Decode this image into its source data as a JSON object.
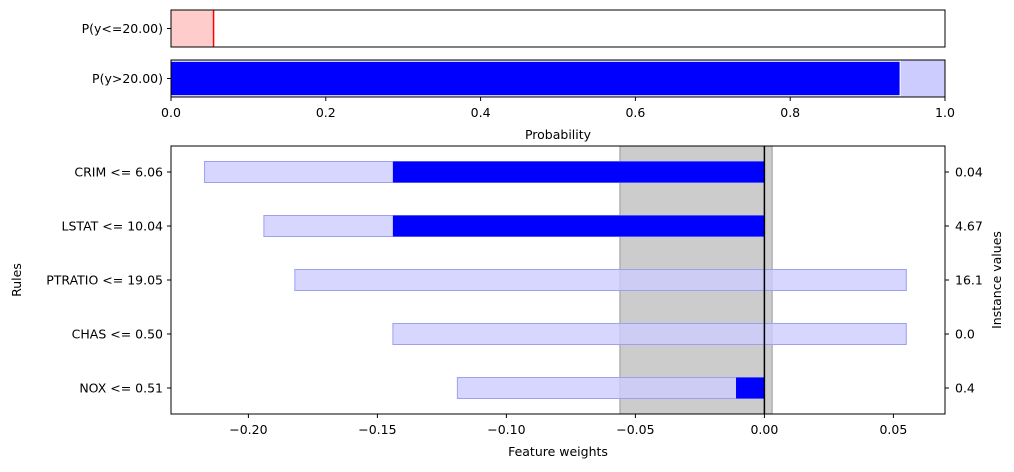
{
  "chart_data": [
    {
      "type": "bar",
      "orientation": "horizontal",
      "categories": [
        "P(y<=20.00)",
        "P(y>20.00)"
      ],
      "series": [
        {
          "values": [
            0.055,
            0.942
          ],
          "colors": [
            "#ff0000",
            "#0000ff"
          ]
        },
        {
          "values": [
            0.055,
            1.0
          ],
          "colors": [
            "#ffcccc",
            "#ccccff"
          ]
        }
      ],
      "xlabel": "Probability",
      "xlim": [
        0,
        1
      ],
      "xticks": [
        "0.0",
        "0.2",
        "0.4",
        "0.6",
        "0.8",
        "1.0"
      ],
      "grid": false
    },
    {
      "type": "bar",
      "orientation": "horizontal",
      "categories": [
        "CRIM <= 6.06",
        "LSTAT <= 10.04",
        "PTRATIO <= 19.05",
        "CHAS <= 0.50",
        "NOX <= 0.51"
      ],
      "instance_values": [
        "0.04",
        "4.67",
        "16.1",
        "0.0",
        "0.4"
      ],
      "series": [
        {
          "name": "weight",
          "values": [
            -0.144,
            -0.144,
            0.0,
            0.0,
            -0.011
          ],
          "color": "#0000ff"
        },
        {
          "name": "uncertainty_low",
          "values": [
            -0.217,
            -0.194,
            -0.182,
            -0.144,
            -0.119
          ],
          "color": "#ccccff"
        },
        {
          "name": "uncertainty_high",
          "values": [
            0.0,
            0.0,
            0.055,
            0.055,
            0.0
          ],
          "color": "#ccccff"
        }
      ],
      "shaded_region": [
        -0.056,
        0.003
      ],
      "reference_line": 0.0,
      "xlabel": "Feature weights",
      "ylabel": "Rules",
      "ylabel_right": "Instance values",
      "xlim": [
        -0.23,
        0.07
      ],
      "xticks": [
        "−0.20",
        "−0.15",
        "−0.10",
        "−0.05",
        "0.00",
        "0.05"
      ],
      "xtick_values": [
        -0.2,
        -0.15,
        -0.1,
        -0.05,
        0.0,
        0.05
      ],
      "grid": false
    }
  ]
}
